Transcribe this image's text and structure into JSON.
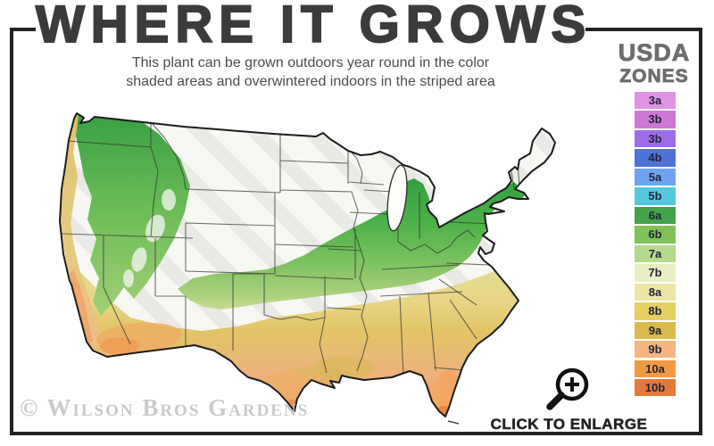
{
  "header": {
    "title": "WHERE IT GROWS",
    "subtitle_line1": "This plant can be grown outdoors year round in the color",
    "subtitle_line2": "shaded areas and overwintered indoors in the striped area"
  },
  "legend": {
    "title_top": "USDA",
    "title_bottom": "ZONES",
    "zones": [
      {
        "label": "3a",
        "color": "#df93e2"
      },
      {
        "label": "3b",
        "color": "#cc79d4"
      },
      {
        "label": "3b",
        "color": "#9e6ce9"
      },
      {
        "label": "4b",
        "color": "#4e72d8"
      },
      {
        "label": "5a",
        "color": "#6fa3f2"
      },
      {
        "label": "5b",
        "color": "#54c9dc"
      },
      {
        "label": "6a",
        "color": "#43a24a"
      },
      {
        "label": "6b",
        "color": "#7fc257"
      },
      {
        "label": "7a",
        "color": "#b4da8c"
      },
      {
        "label": "7b",
        "color": "#e9efc4"
      },
      {
        "label": "8a",
        "color": "#ece5a6"
      },
      {
        "label": "8b",
        "color": "#e5d063"
      },
      {
        "label": "9a",
        "color": "#d8bb4b"
      },
      {
        "label": "9b",
        "color": "#f4b582"
      },
      {
        "label": "10a",
        "color": "#f29a43"
      },
      {
        "label": "10b",
        "color": "#e4793c"
      }
    ]
  },
  "map": {
    "colors": {
      "striped_area_base": "#f7f7f4",
      "stripe": "#e9e9e6",
      "green_dark": "#2f9e3e",
      "green_mid": "#4cb04a",
      "green_light": "#7dc260",
      "yellow_green": "#c8dd92",
      "pale_yellow": "#e7d584",
      "gold": "#e2c465",
      "orange_light": "#eeb07c",
      "orange_deep": "#ec8f46",
      "outline": "#1d1d1d"
    }
  },
  "footer": {
    "watermark": "© Wilson Bros Gardens",
    "enlarge_label": "CLICK TO ENLARGE"
  }
}
